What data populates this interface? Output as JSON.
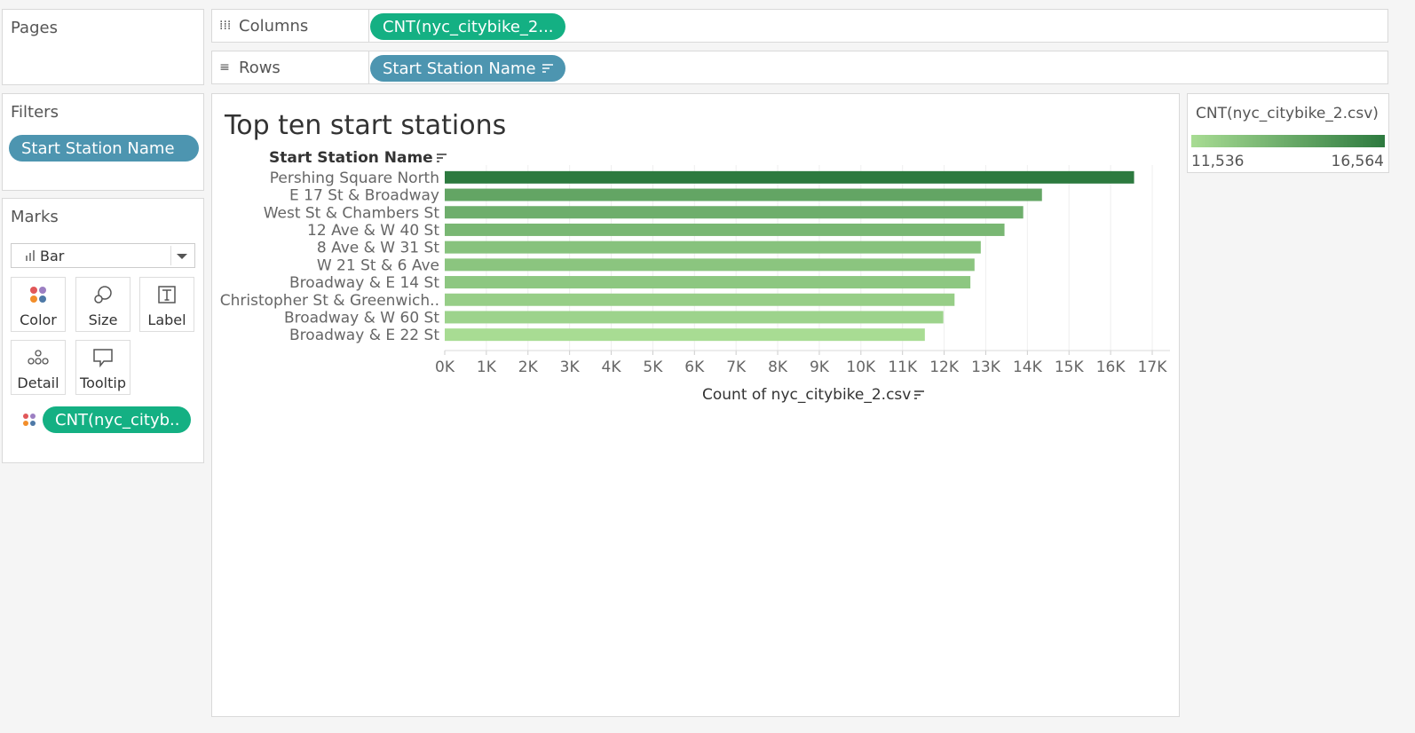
{
  "panels": {
    "pages_title": "Pages",
    "filters_title": "Filters",
    "marks_title": "Marks"
  },
  "filters": [
    {
      "label": "Start Station Name"
    }
  ],
  "shelves": {
    "columns_label": "Columns",
    "columns_pill": "CNT(nyc_citybike_2...",
    "rows_label": "Rows",
    "rows_pill": "Start Station Name"
  },
  "marks": {
    "type": "Bar",
    "buttons": [
      "Color",
      "Size",
      "Label",
      "Detail",
      "Tooltip"
    ],
    "color_pill": "CNT(nyc_cityb.."
  },
  "legend": {
    "title": "CNT(nyc_citybike_2.csv)",
    "min": "11,536",
    "max": "16,564",
    "colors": [
      "#a8dc93",
      "#2d7a3f"
    ]
  },
  "chart_data": {
    "type": "bar",
    "orientation": "horizontal",
    "title": "Top ten start stations",
    "row_header": "Start Station Name",
    "xlabel": "Count of nyc_citybike_2.csv",
    "categories": [
      "Pershing Square North",
      "E 17 St & Broadway",
      "West St & Chambers St",
      "12 Ave & W 40 St",
      "8 Ave & W 31 St",
      "W 21 St & 6 Ave",
      "Broadway & E 14 St",
      "Christopher St & Greenwich..",
      "Broadway & W 60 St",
      "Broadway & E 22 St"
    ],
    "values": [
      16564,
      14350,
      13900,
      13450,
      12880,
      12730,
      12630,
      12250,
      11980,
      11536
    ],
    "xlim": [
      0,
      17000
    ],
    "xticks": [
      "0K",
      "1K",
      "2K",
      "3K",
      "4K",
      "5K",
      "6K",
      "7K",
      "8K",
      "9K",
      "10K",
      "11K",
      "12K",
      "13K",
      "14K",
      "15K",
      "16K",
      "17K"
    ],
    "grid": true,
    "color_range": [
      "#a8dc93",
      "#2d7a3f"
    ],
    "color_domain": [
      11536,
      16564
    ]
  }
}
